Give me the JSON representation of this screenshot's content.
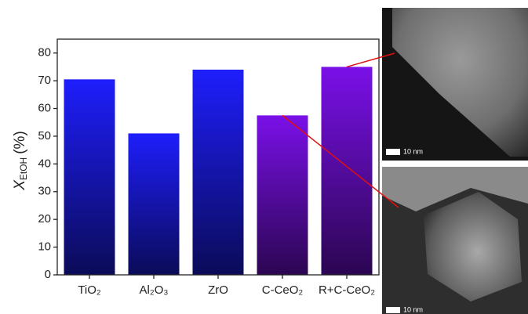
{
  "chart_data": {
    "type": "bar",
    "y_label": {
      "symbol": "X",
      "subscript": "EtOH",
      "unit": "(%)"
    },
    "categories": [
      "TiO₂",
      "Al₂O₃",
      "ZrO",
      "C-CeO₂",
      "R+C-CeO₂"
    ],
    "values": [
      70.5,
      51,
      74,
      57.5,
      75
    ],
    "colors": [
      "#1e1efc",
      "#1e1efc",
      "#1e1efc",
      "#7a10e8",
      "#7a10e8"
    ],
    "ylim": [
      0,
      85
    ],
    "yticks": [
      0,
      10,
      20,
      30,
      40,
      50,
      60,
      70,
      80
    ]
  },
  "images": [
    {
      "scale_label": "10 nm"
    },
    {
      "scale_label": "10 nm"
    }
  ]
}
